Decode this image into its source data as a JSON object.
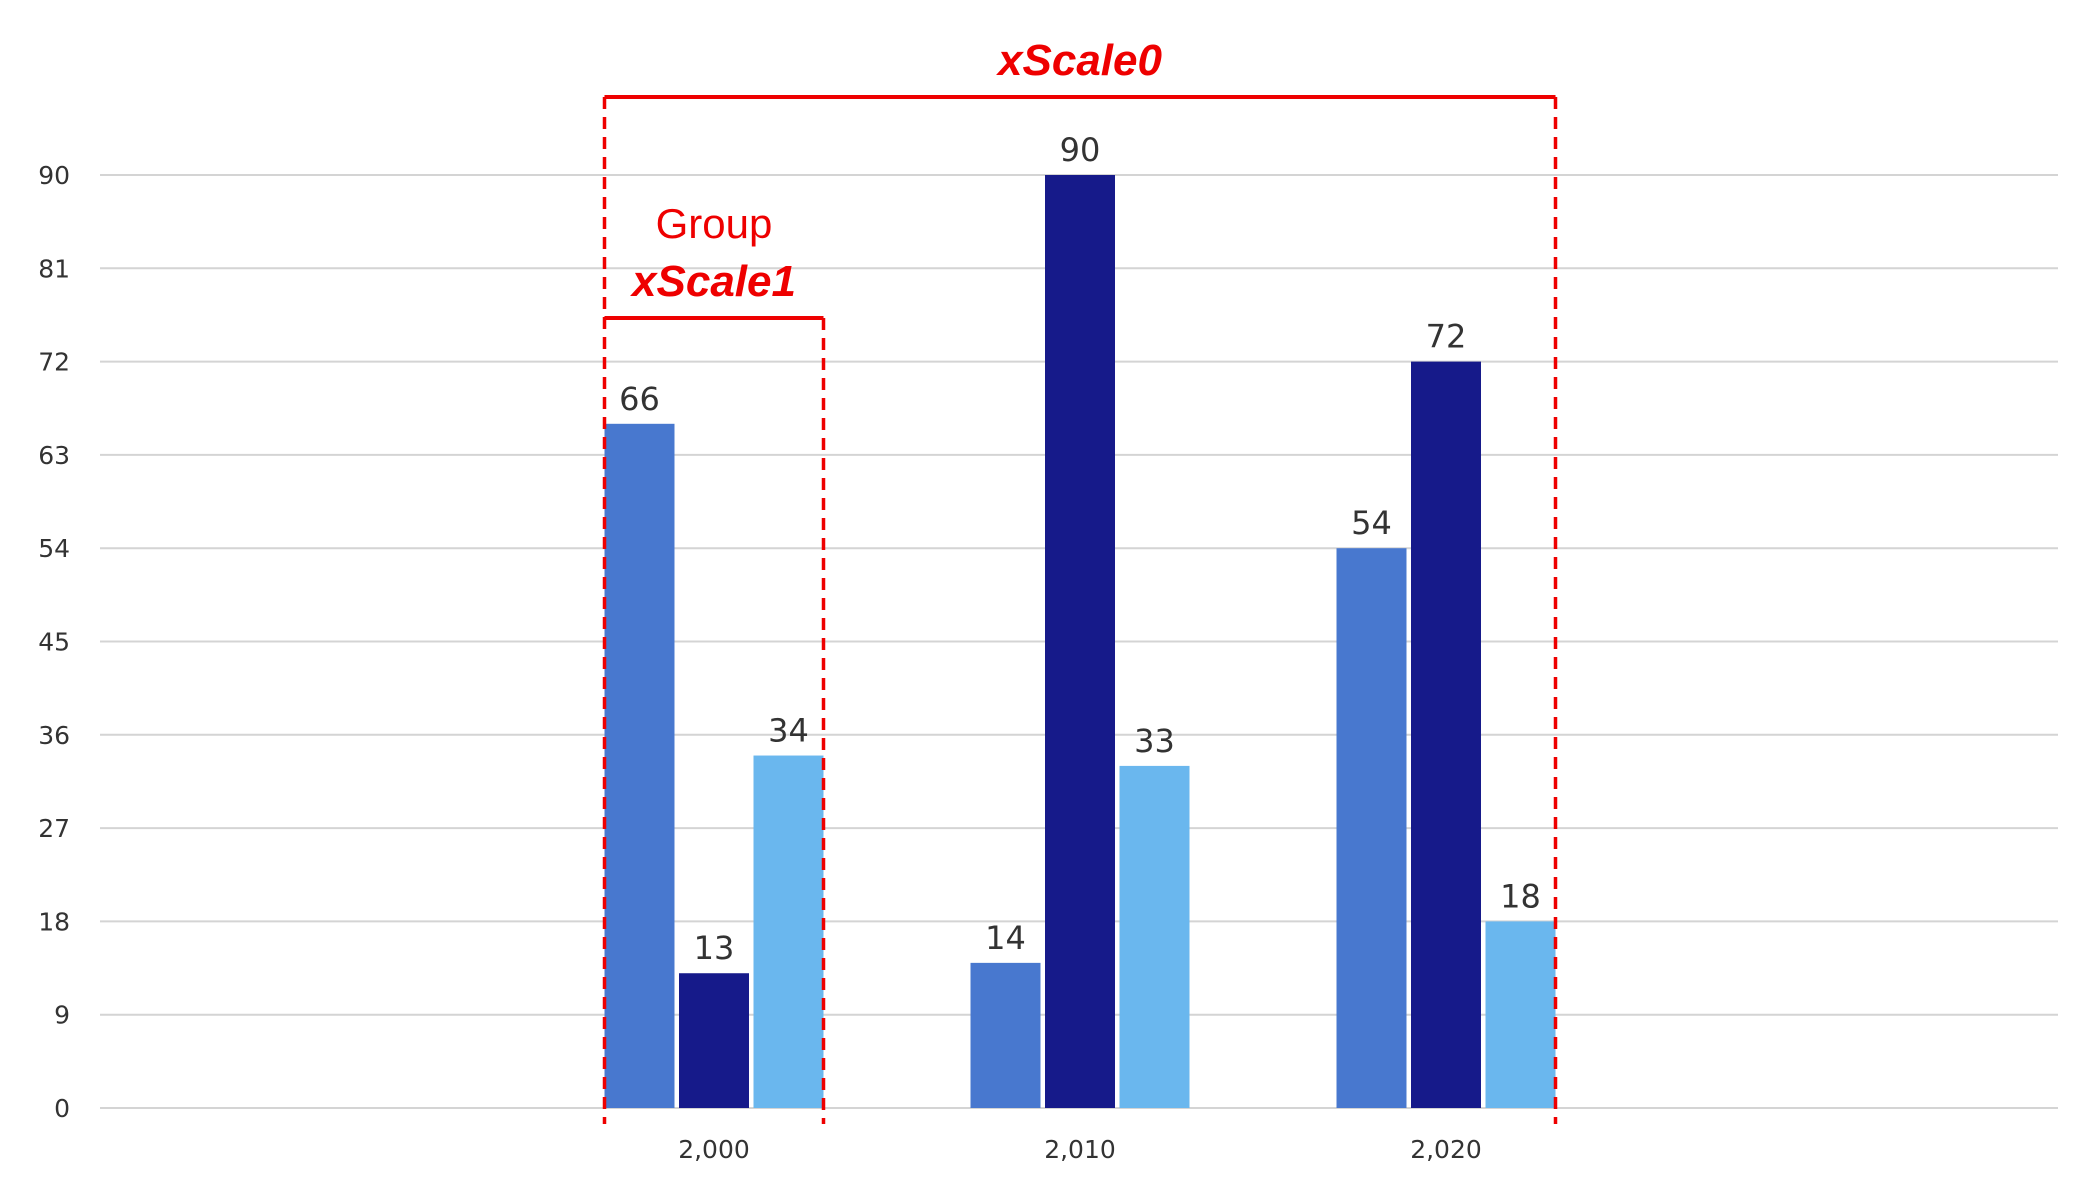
{
  "chart_data": {
    "type": "bar",
    "categories": [
      "2,000",
      "2,010",
      "2,020"
    ],
    "series": [
      {
        "values": [
          66,
          14,
          54
        ],
        "color": "#4878cf"
      },
      {
        "values": [
          13,
          90,
          72
        ],
        "color": "#161a8a"
      },
      {
        "values": [
          34,
          33,
          18
        ],
        "color": "#6ab7ee"
      }
    ],
    "y_ticks": [
      "0",
      "9",
      "18",
      "27",
      "36",
      "45",
      "54",
      "63",
      "72",
      "81",
      "90"
    ],
    "ylim": [
      0,
      90
    ],
    "grid": true,
    "annotations": {
      "outer_label": "xScale0",
      "group_label": "Group",
      "inner_label": "xScale1",
      "color": "#ee0000"
    }
  }
}
